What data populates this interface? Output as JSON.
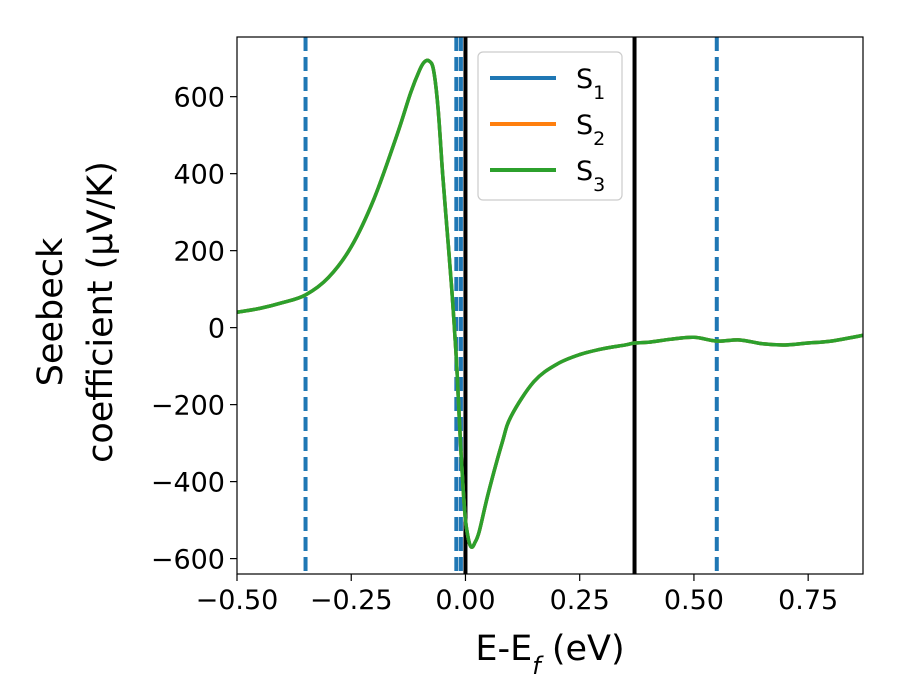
{
  "chart_data": {
    "type": "line",
    "xlabel": "E-E",
    "xlabel_sub": "f",
    "xlabel_unit": " (eV)",
    "ylabel_line1": "Seebeck",
    "ylabel_line2": "coefficient  (μV/K)",
    "xlim": [
      -0.5,
      0.87
    ],
    "ylim": [
      -640,
      755
    ],
    "x_ticks": [
      -0.5,
      -0.25,
      0.0,
      0.25,
      0.5,
      0.75
    ],
    "x_tick_labels": [
      "−0.50",
      "−0.25",
      "0.00",
      "0.25",
      "0.50",
      "0.75"
    ],
    "y_ticks": [
      -600,
      -400,
      -200,
      0,
      200,
      400,
      600
    ],
    "y_tick_labels": [
      "−600",
      "−400",
      "−200",
      "0",
      "200",
      "400",
      "600"
    ],
    "grid": false,
    "legend_position": "top-right",
    "series": [
      {
        "name": "S",
        "name_sub": "1",
        "color": "#1f77b4",
        "x": [
          -0.5,
          -0.45,
          -0.4,
          -0.35,
          -0.3,
          -0.25,
          -0.2,
          -0.15,
          -0.12,
          -0.1,
          -0.09,
          -0.08,
          -0.07,
          -0.06,
          -0.05,
          -0.04,
          -0.03,
          -0.02,
          -0.015,
          -0.01,
          -0.005,
          0.0,
          0.005,
          0.01,
          0.015,
          0.02,
          0.03,
          0.05,
          0.08,
          0.1,
          0.15,
          0.2,
          0.25,
          0.3,
          0.35,
          0.37,
          0.4,
          0.45,
          0.5,
          0.55,
          0.6,
          0.65,
          0.7,
          0.75,
          0.8,
          0.87
        ],
        "y": [
          40,
          50,
          65,
          85,
          130,
          210,
          335,
          500,
          610,
          670,
          690,
          693,
          670,
          570,
          400,
          250,
          100,
          -80,
          -200,
          -320,
          -420,
          -500,
          -540,
          -565,
          -570,
          -560,
          -530,
          -430,
          -300,
          -230,
          -140,
          -95,
          -70,
          -55,
          -45,
          -40,
          -38,
          -30,
          -25,
          -35,
          -32,
          -42,
          -45,
          -40,
          -35,
          -20
        ]
      },
      {
        "name": "S",
        "name_sub": "2",
        "color": "#ff7f0e",
        "x": [
          -0.5,
          -0.45,
          -0.4,
          -0.35,
          -0.3,
          -0.25,
          -0.2,
          -0.15,
          -0.12,
          -0.1,
          -0.09,
          -0.08,
          -0.07,
          -0.06,
          -0.05,
          -0.04,
          -0.03,
          -0.02,
          -0.015,
          -0.01,
          -0.005,
          0.0,
          0.005,
          0.01,
          0.015,
          0.02,
          0.03,
          0.05,
          0.08,
          0.1,
          0.15,
          0.2,
          0.25,
          0.3,
          0.35,
          0.37,
          0.4,
          0.45,
          0.5,
          0.55,
          0.6,
          0.65,
          0.7,
          0.75,
          0.8,
          0.87
        ],
        "y": [
          40,
          50,
          65,
          85,
          130,
          210,
          335,
          500,
          610,
          670,
          690,
          693,
          670,
          570,
          400,
          250,
          100,
          -80,
          -200,
          -320,
          -420,
          -500,
          -540,
          -565,
          -570,
          -560,
          -530,
          -430,
          -300,
          -230,
          -140,
          -95,
          -70,
          -55,
          -45,
          -40,
          -38,
          -30,
          -25,
          -35,
          -32,
          -42,
          -45,
          -40,
          -35,
          -20
        ]
      },
      {
        "name": "S",
        "name_sub": "3",
        "color": "#2ca02c",
        "x": [
          -0.5,
          -0.45,
          -0.4,
          -0.35,
          -0.3,
          -0.25,
          -0.2,
          -0.15,
          -0.12,
          -0.1,
          -0.09,
          -0.08,
          -0.07,
          -0.06,
          -0.05,
          -0.04,
          -0.03,
          -0.02,
          -0.015,
          -0.01,
          -0.005,
          0.0,
          0.005,
          0.01,
          0.015,
          0.02,
          0.03,
          0.05,
          0.08,
          0.1,
          0.15,
          0.2,
          0.25,
          0.3,
          0.35,
          0.37,
          0.4,
          0.45,
          0.5,
          0.55,
          0.6,
          0.65,
          0.7,
          0.75,
          0.8,
          0.87
        ],
        "y": [
          40,
          50,
          65,
          85,
          130,
          210,
          335,
          500,
          610,
          670,
          690,
          693,
          670,
          570,
          400,
          250,
          100,
          -80,
          -200,
          -320,
          -420,
          -500,
          -540,
          -565,
          -570,
          -560,
          -530,
          -430,
          -300,
          -230,
          -140,
          -95,
          -70,
          -55,
          -45,
          -40,
          -38,
          -30,
          -25,
          -35,
          -32,
          -42,
          -45,
          -40,
          -35,
          -20
        ]
      }
    ],
    "vlines": [
      {
        "x": -0.35,
        "style": "dashed",
        "color": "#1f77b4"
      },
      {
        "x": -0.02,
        "style": "dashed",
        "color": "#1f77b4"
      },
      {
        "x": -0.01,
        "style": "dashed",
        "color": "#1f77b4"
      },
      {
        "x": 0.55,
        "style": "dashed",
        "color": "#1f77b4"
      },
      {
        "x": 0.0,
        "style": "solid",
        "color": "#000000"
      },
      {
        "x": 0.37,
        "style": "solid",
        "color": "#000000"
      }
    ]
  }
}
